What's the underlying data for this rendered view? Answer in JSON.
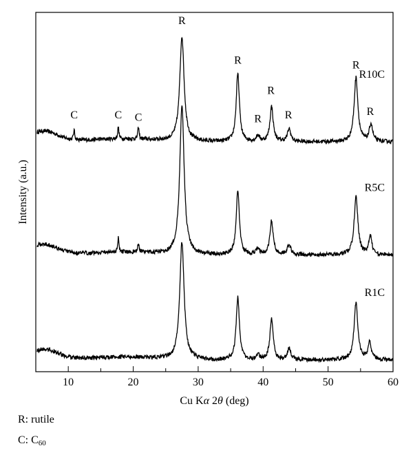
{
  "chart_data": {
    "type": "line",
    "title": "",
    "xlabel": "Cu Kα 2θ (deg)",
    "xlabel_parts": [
      "Cu K",
      "α",
      " 2",
      "θ",
      " (deg)"
    ],
    "ylabel": "Intensity (a.u.)",
    "xlim": [
      5,
      60
    ],
    "x_ticks": [
      10,
      20,
      30,
      40,
      50,
      60
    ],
    "y_ticks": "none (arbitrary units)",
    "grid": false,
    "series": [
      {
        "name": "R10C",
        "color": "#000000",
        "baseline_y": 0.97,
        "peaks": [
          {
            "x": 10.9,
            "h": 0.08,
            "w": 0.12
          },
          {
            "x": 17.7,
            "h": 0.1,
            "w": 0.12
          },
          {
            "x": 20.8,
            "h": 0.1,
            "w": 0.12
          },
          {
            "x": 27.5,
            "h": 0.9,
            "w": 0.4
          },
          {
            "x": 36.1,
            "h": 0.58,
            "w": 0.3
          },
          {
            "x": 39.2,
            "h": 0.05,
            "w": 0.3
          },
          {
            "x": 41.3,
            "h": 0.3,
            "w": 0.3
          },
          {
            "x": 44.0,
            "h": 0.11,
            "w": 0.3
          },
          {
            "x": 54.3,
            "h": 0.55,
            "w": 0.35
          },
          {
            "x": 56.6,
            "h": 0.15,
            "w": 0.3
          }
        ]
      },
      {
        "name": "R5C",
        "color": "#000000",
        "baseline_y": 0.0,
        "peaks": [
          {
            "x": 17.7,
            "h": 0.12,
            "w": 0.12
          },
          {
            "x": 20.8,
            "h": 0.08,
            "w": 0.12
          },
          {
            "x": 27.5,
            "h": 1.29,
            "w": 0.4
          },
          {
            "x": 36.1,
            "h": 0.54,
            "w": 0.3
          },
          {
            "x": 39.2,
            "h": 0.05,
            "w": 0.3
          },
          {
            "x": 41.3,
            "h": 0.29,
            "w": 0.3
          },
          {
            "x": 44.0,
            "h": 0.09,
            "w": 0.3
          },
          {
            "x": 54.3,
            "h": 0.5,
            "w": 0.35
          },
          {
            "x": 56.5,
            "h": 0.16,
            "w": 0.3
          }
        ]
      },
      {
        "name": "R1C",
        "color": "#000000",
        "baseline_y": -0.9,
        "peaks": [
          {
            "x": 27.5,
            "h": 1.01,
            "w": 0.4
          },
          {
            "x": 36.1,
            "h": 0.54,
            "w": 0.3
          },
          {
            "x": 39.2,
            "h": 0.04,
            "w": 0.3
          },
          {
            "x": 41.3,
            "h": 0.36,
            "w": 0.3
          },
          {
            "x": 44.0,
            "h": 0.1,
            "w": 0.3
          },
          {
            "x": 54.3,
            "h": 0.49,
            "w": 0.35
          },
          {
            "x": 56.4,
            "h": 0.15,
            "w": 0.3
          }
        ]
      }
    ],
    "annotations": [
      {
        "text": "C",
        "x": 10.9,
        "y": 1.17
      },
      {
        "text": "C",
        "x": 17.7,
        "y": 1.17
      },
      {
        "text": "C",
        "x": 20.8,
        "y": 1.15
      },
      {
        "text": "R",
        "x": 27.5,
        "y": 1.98
      },
      {
        "text": "R",
        "x": 36.1,
        "y": 1.64
      },
      {
        "text": "R",
        "x": 39.2,
        "y": 1.14
      },
      {
        "text": "R",
        "x": 41.2,
        "y": 1.38
      },
      {
        "text": "R",
        "x": 43.9,
        "y": 1.17
      },
      {
        "text": "R",
        "x": 54.3,
        "y": 1.6
      },
      {
        "text": "R",
        "x": 56.5,
        "y": 1.2
      }
    ],
    "legend": {
      "rutile_label": "R: rutile",
      "c60_prefix": "C: C",
      "c60_sub": "60"
    }
  }
}
